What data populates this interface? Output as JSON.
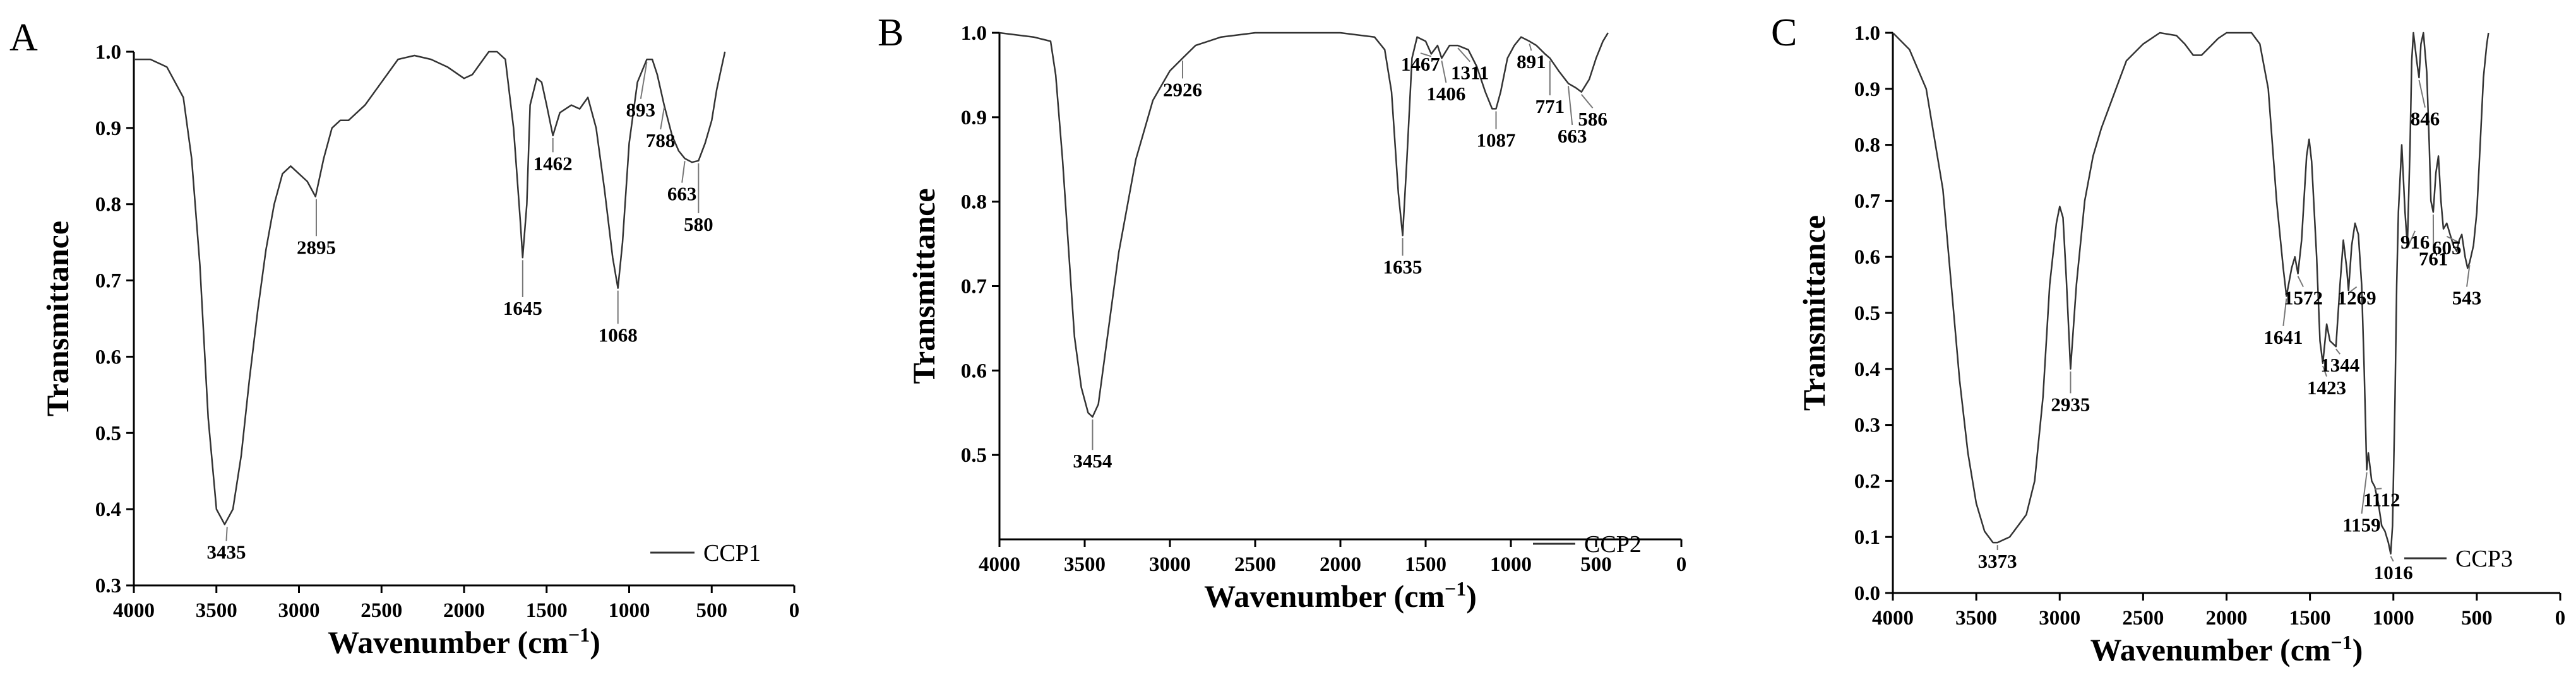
{
  "chart_data": [
    {
      "type": "line",
      "panel_label": "A",
      "xlabel": "Wavenumber (cm",
      "xlabel_sup": "−1",
      "xlabel_end": ")",
      "ylabel": "Transmittance",
      "xlim": [
        4000,
        0
      ],
      "ylim": [
        0.3,
        1.0
      ],
      "x_ticks": [
        4000,
        3500,
        3000,
        2500,
        2000,
        1500,
        1000,
        500,
        0
      ],
      "y_ticks": [
        0.3,
        0.4,
        0.5,
        0.6,
        0.7,
        0.8,
        0.9,
        1.0
      ],
      "y_tick_labels": [
        "0.3",
        "0.4",
        "0.5",
        "0.6",
        "0.7",
        "0.8",
        "0.9",
        "1.0"
      ],
      "legend": "CCP1",
      "series": [
        {
          "name": "CCP1",
          "points": [
            [
              4000,
              0.99
            ],
            [
              3900,
              0.99
            ],
            [
              3800,
              0.98
            ],
            [
              3700,
              0.94
            ],
            [
              3650,
              0.86
            ],
            [
              3600,
              0.72
            ],
            [
              3550,
              0.52
            ],
            [
              3500,
              0.4
            ],
            [
              3450,
              0.38
            ],
            [
              3400,
              0.4
            ],
            [
              3350,
              0.47
            ],
            [
              3300,
              0.57
            ],
            [
              3250,
              0.66
            ],
            [
              3200,
              0.74
            ],
            [
              3150,
              0.8
            ],
            [
              3100,
              0.84
            ],
            [
              3050,
              0.85
            ],
            [
              3000,
              0.84
            ],
            [
              2950,
              0.83
            ],
            [
              2900,
              0.81
            ],
            [
              2850,
              0.86
            ],
            [
              2800,
              0.9
            ],
            [
              2750,
              0.91
            ],
            [
              2700,
              0.91
            ],
            [
              2600,
              0.93
            ],
            [
              2500,
              0.96
            ],
            [
              2400,
              0.99
            ],
            [
              2300,
              0.995
            ],
            [
              2200,
              0.99
            ],
            [
              2100,
              0.98
            ],
            [
              2000,
              0.965
            ],
            [
              1950,
              0.97
            ],
            [
              1900,
              0.985
            ],
            [
              1850,
              1.0
            ],
            [
              1800,
              1.0
            ],
            [
              1750,
              0.99
            ],
            [
              1700,
              0.9
            ],
            [
              1660,
              0.78
            ],
            [
              1645,
              0.73
            ],
            [
              1620,
              0.8
            ],
            [
              1600,
              0.93
            ],
            [
              1560,
              0.965
            ],
            [
              1530,
              0.96
            ],
            [
              1500,
              0.93
            ],
            [
              1462,
              0.89
            ],
            [
              1420,
              0.92
            ],
            [
              1350,
              0.93
            ],
            [
              1300,
              0.925
            ],
            [
              1250,
              0.94
            ],
            [
              1200,
              0.9
            ],
            [
              1150,
              0.82
            ],
            [
              1100,
              0.73
            ],
            [
              1068,
              0.69
            ],
            [
              1040,
              0.75
            ],
            [
              1000,
              0.88
            ],
            [
              950,
              0.96
            ],
            [
              893,
              0.99
            ],
            [
              860,
              0.99
            ],
            [
              830,
              0.97
            ],
            [
              788,
              0.93
            ],
            [
              740,
              0.89
            ],
            [
              700,
              0.87
            ],
            [
              663,
              0.86
            ],
            [
              620,
              0.855
            ],
            [
              580,
              0.857
            ],
            [
              540,
              0.88
            ],
            [
              500,
              0.91
            ],
            [
              470,
              0.95
            ],
            [
              440,
              0.98
            ],
            [
              420,
              1.0
            ]
          ]
        }
      ],
      "peak_labels": [
        "3435",
        "2895",
        "1645",
        "1462",
        "1068",
        "893",
        "788",
        "663",
        "580"
      ]
    },
    {
      "type": "line",
      "panel_label": "B",
      "xlabel": "Wavenumber (cm",
      "xlabel_sup": "−1",
      "xlabel_end": ")",
      "ylabel": "Transmittance",
      "xlim": [
        4000,
        0
      ],
      "ylim": [
        0.4,
        1.0
      ],
      "x_ticks": [
        4000,
        3500,
        3000,
        2500,
        2000,
        1500,
        1000,
        500,
        0
      ],
      "y_ticks": [
        0.5,
        0.6,
        0.7,
        0.8,
        0.9,
        1.0
      ],
      "y_tick_labels": [
        "0.5",
        "0.6",
        "0.7",
        "0.8",
        "0.9",
        "1.0"
      ],
      "legend": "CCP2",
      "series": [
        {
          "name": "CCP2",
          "points": [
            [
              4000,
              1.0
            ],
            [
              3800,
              0.995
            ],
            [
              3700,
              0.99
            ],
            [
              3670,
              0.95
            ],
            [
              3630,
              0.85
            ],
            [
              3600,
              0.76
            ],
            [
              3560,
              0.64
            ],
            [
              3520,
              0.58
            ],
            [
              3480,
              0.55
            ],
            [
              3454,
              0.545
            ],
            [
              3420,
              0.56
            ],
            [
              3380,
              0.62
            ],
            [
              3300,
              0.74
            ],
            [
              3200,
              0.85
            ],
            [
              3100,
              0.92
            ],
            [
              3000,
              0.955
            ],
            [
              2926,
              0.97
            ],
            [
              2850,
              0.985
            ],
            [
              2700,
              0.995
            ],
            [
              2500,
              1.0
            ],
            [
              2000,
              1.0
            ],
            [
              1800,
              0.995
            ],
            [
              1740,
              0.98
            ],
            [
              1700,
              0.93
            ],
            [
              1660,
              0.81
            ],
            [
              1635,
              0.76
            ],
            [
              1610,
              0.85
            ],
            [
              1580,
              0.97
            ],
            [
              1550,
              0.995
            ],
            [
              1500,
              0.99
            ],
            [
              1467,
              0.975
            ],
            [
              1430,
              0.985
            ],
            [
              1406,
              0.97
            ],
            [
              1360,
              0.985
            ],
            [
              1311,
              0.985
            ],
            [
              1250,
              0.98
            ],
            [
              1200,
              0.96
            ],
            [
              1150,
              0.93
            ],
            [
              1110,
              0.91
            ],
            [
              1087,
              0.91
            ],
            [
              1060,
              0.93
            ],
            [
              1020,
              0.97
            ],
            [
              980,
              0.985
            ],
            [
              940,
              0.995
            ],
            [
              891,
              0.99
            ],
            [
              850,
              0.985
            ],
            [
              800,
              0.975
            ],
            [
              771,
              0.97
            ],
            [
              720,
              0.955
            ],
            [
              663,
              0.94
            ],
            [
              620,
              0.935
            ],
            [
              586,
              0.93
            ],
            [
              540,
              0.945
            ],
            [
              500,
              0.97
            ],
            [
              460,
              0.99
            ],
            [
              430,
              1.0
            ]
          ]
        }
      ],
      "peak_labels": [
        "3454",
        "2926",
        "1635",
        "1467",
        "1406",
        "1311",
        "1087",
        "891",
        "771",
        "663",
        "586"
      ]
    },
    {
      "type": "line",
      "panel_label": "C",
      "xlabel": "Wavenumber (cm",
      "xlabel_sup": "−1",
      "xlabel_end": ")",
      "ylabel": "Transmittance",
      "xlim": [
        4000,
        0
      ],
      "ylim": [
        0.0,
        1.0
      ],
      "x_ticks": [
        4000,
        3500,
        3000,
        2500,
        2000,
        1500,
        1000,
        500,
        0
      ],
      "y_ticks": [
        0.0,
        0.1,
        0.2,
        0.3,
        0.4,
        0.5,
        0.6,
        0.7,
        0.8,
        0.9,
        1.0
      ],
      "y_tick_labels": [
        "0.0",
        "0.1",
        "0.2",
        "0.3",
        "0.4",
        "0.5",
        "0.6",
        "0.7",
        "0.8",
        "0.9",
        "1.0"
      ],
      "legend": "CCP3",
      "series": [
        {
          "name": "CCP3",
          "points": [
            [
              4000,
              1.0
            ],
            [
              3900,
              0.97
            ],
            [
              3800,
              0.9
            ],
            [
              3700,
              0.72
            ],
            [
              3650,
              0.55
            ],
            [
              3600,
              0.38
            ],
            [
              3550,
              0.25
            ],
            [
              3500,
              0.16
            ],
            [
              3450,
              0.11
            ],
            [
              3400,
              0.09
            ],
            [
              3373,
              0.09
            ],
            [
              3300,
              0.1
            ],
            [
              3200,
              0.14
            ],
            [
              3150,
              0.2
            ],
            [
              3100,
              0.35
            ],
            [
              3060,
              0.55
            ],
            [
              3020,
              0.66
            ],
            [
              3000,
              0.69
            ],
            [
              2980,
              0.67
            ],
            [
              2960,
              0.56
            ],
            [
              2935,
              0.4
            ],
            [
              2900,
              0.55
            ],
            [
              2850,
              0.7
            ],
            [
              2800,
              0.78
            ],
            [
              2750,
              0.83
            ],
            [
              2700,
              0.87
            ],
            [
              2600,
              0.95
            ],
            [
              2500,
              0.98
            ],
            [
              2400,
              1.0
            ],
            [
              2300,
              0.995
            ],
            [
              2250,
              0.98
            ],
            [
              2200,
              0.96
            ],
            [
              2150,
              0.96
            ],
            [
              2100,
              0.975
            ],
            [
              2050,
              0.99
            ],
            [
              2000,
              1.0
            ],
            [
              1850,
              1.0
            ],
            [
              1800,
              0.98
            ],
            [
              1750,
              0.9
            ],
            [
              1700,
              0.7
            ],
            [
              1660,
              0.58
            ],
            [
              1641,
              0.53
            ],
            [
              1610,
              0.58
            ],
            [
              1590,
              0.6
            ],
            [
              1572,
              0.57
            ],
            [
              1550,
              0.63
            ],
            [
              1520,
              0.78
            ],
            [
              1505,
              0.81
            ],
            [
              1490,
              0.77
            ],
            [
              1460,
              0.6
            ],
            [
              1440,
              0.45
            ],
            [
              1423,
              0.41
            ],
            [
              1400,
              0.48
            ],
            [
              1380,
              0.45
            ],
            [
              1344,
              0.44
            ],
            [
              1320,
              0.55
            ],
            [
              1300,
              0.63
            ],
            [
              1280,
              0.58
            ],
            [
              1269,
              0.54
            ],
            [
              1250,
              0.62
            ],
            [
              1230,
              0.66
            ],
            [
              1210,
              0.64
            ],
            [
              1190,
              0.55
            ],
            [
              1175,
              0.4
            ],
            [
              1160,
              0.22
            ],
            [
              1150,
              0.25
            ],
            [
              1130,
              0.2
            ],
            [
              1112,
              0.19
            ],
            [
              1090,
              0.16
            ],
            [
              1070,
              0.12
            ],
            [
              1050,
              0.11
            ],
            [
              1030,
              0.09
            ],
            [
              1016,
              0.07
            ],
            [
              1005,
              0.12
            ],
            [
              990,
              0.35
            ],
            [
              980,
              0.55
            ],
            [
              970,
              0.68
            ],
            [
              950,
              0.8
            ],
            [
              930,
              0.68
            ],
            [
              916,
              0.62
            ],
            [
              900,
              0.8
            ],
            [
              890,
              0.95
            ],
            [
              880,
              1.0
            ],
            [
              860,
              0.95
            ],
            [
              846,
              0.92
            ],
            [
              835,
              0.98
            ],
            [
              820,
              1.0
            ],
            [
              800,
              0.93
            ],
            [
              785,
              0.8
            ],
            [
              775,
              0.7
            ],
            [
              761,
              0.68
            ],
            [
              745,
              0.75
            ],
            [
              730,
              0.78
            ],
            [
              715,
              0.7
            ],
            [
              700,
              0.65
            ],
            [
              680,
              0.66
            ],
            [
              660,
              0.64
            ],
            [
              640,
              0.62
            ],
            [
              620,
              0.61
            ],
            [
              605,
              0.63
            ],
            [
              590,
              0.64
            ],
            [
              570,
              0.6
            ],
            [
              555,
              0.58
            ],
            [
              543,
              0.59
            ],
            [
              520,
              0.62
            ],
            [
              500,
              0.68
            ],
            [
              480,
              0.8
            ],
            [
              460,
              0.92
            ],
            [
              440,
              0.98
            ],
            [
              430,
              1.0
            ]
          ]
        }
      ],
      "peak_labels": [
        "3373",
        "2935",
        "1641",
        "1572",
        "1423",
        "1344",
        "1269",
        "1159",
        "1112",
        "1016",
        "916",
        "846",
        "761",
        "605",
        "543"
      ]
    }
  ]
}
